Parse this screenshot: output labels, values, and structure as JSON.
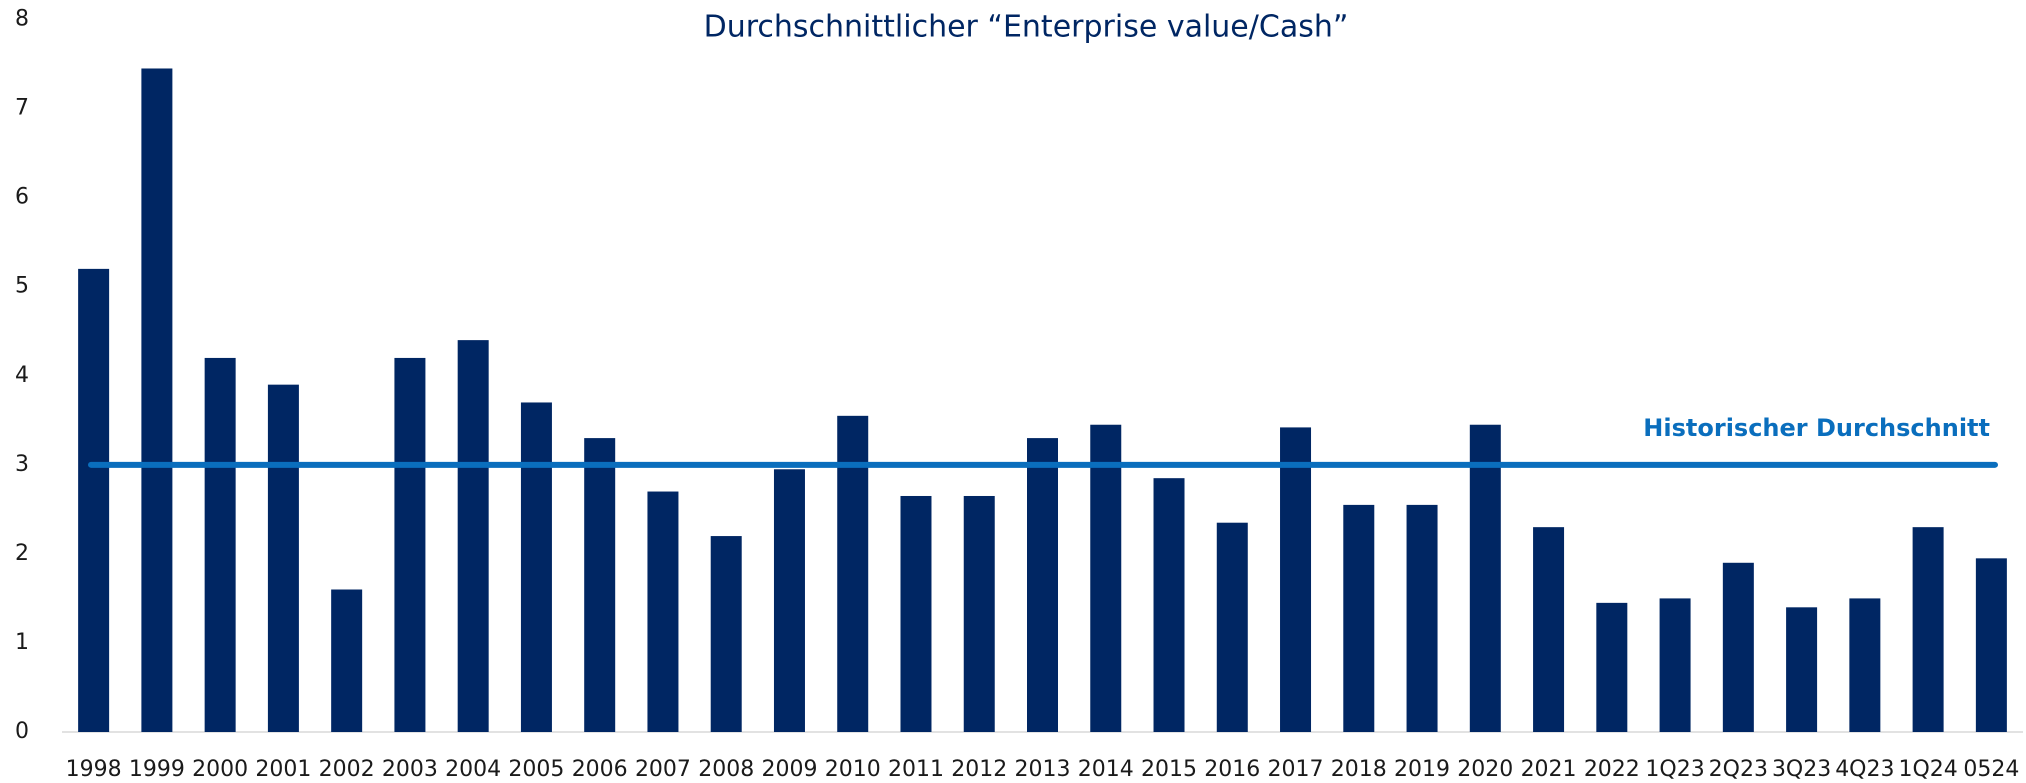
{
  "chart_data": {
    "type": "bar",
    "subtitle": "Durchschnittlicher “Enterprise value/Cash”",
    "categories": [
      "1998",
      "1999",
      "2000",
      "2001",
      "2002",
      "2003",
      "2004",
      "2005",
      "2006",
      "2007",
      "2008",
      "2009",
      "2010",
      "2011",
      "2012",
      "2013",
      "2014",
      "2015",
      "2016",
      "2017",
      "2018",
      "2019",
      "2020",
      "2021",
      "2022",
      "1Q23",
      "2Q23",
      "3Q23",
      "4Q23",
      "1Q24",
      "0524"
    ],
    "values": [
      5.2,
      7.45,
      4.2,
      3.9,
      1.6,
      4.2,
      4.4,
      3.7,
      3.3,
      2.7,
      2.2,
      2.95,
      3.55,
      2.65,
      2.65,
      3.3,
      3.45,
      2.85,
      2.35,
      3.42,
      2.55,
      2.55,
      3.45,
      2.3,
      1.45,
      1.5,
      1.9,
      1.4,
      1.5,
      2.3,
      1.95
    ],
    "color": "#002663",
    "ylim": [
      0,
      8
    ],
    "yticks": [
      0,
      1,
      2,
      3,
      4,
      5,
      6,
      7,
      8
    ],
    "grid": false,
    "average": {
      "label": "Historischer Durchschnitt",
      "value": 3,
      "color": "#0a6ebd"
    }
  }
}
